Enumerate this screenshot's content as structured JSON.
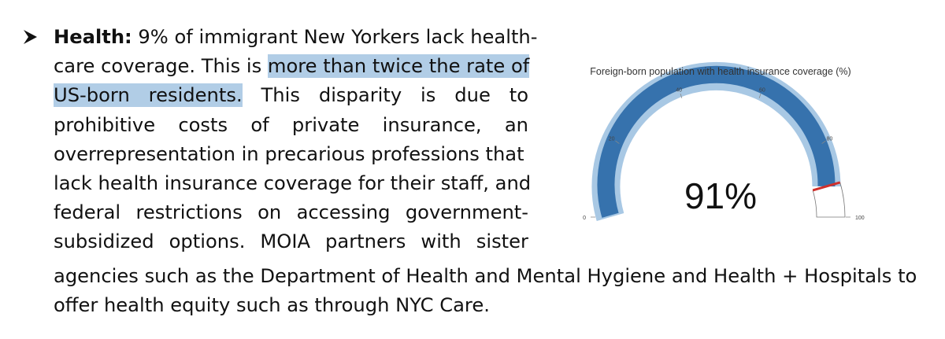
{
  "paragraph": {
    "bullet_icon": "arrow-bullet-icon",
    "heading": "Health:",
    "line1_rest": " 9% of immigrant New Yorkers lack health-",
    "line2_start": "care coverage. This is ",
    "line2_highlight": "more than twice the rate of",
    "line3_highlight": "US-born residents.",
    "line3_rest": " This disparity is due to",
    "line4": "prohibitive costs of private insurance, an",
    "line5": "overrepresentation in precarious professions that",
    "line6": "lack health insurance coverage for their staff, and",
    "line7": "federal restrictions on accessing government-",
    "line8": "subsidized options. MOIA partners with sister",
    "line9": "agencies such as the Department of Health and Mental Hygiene and Health + Hospitals to",
    "line10": "offer health equity such as through NYC Care."
  },
  "gauge": {
    "title": "Foreign-born population with health insurance coverage (%)",
    "value": 91,
    "value_label": "91%",
    "min": 0,
    "max": 100,
    "ticks": [
      "0",
      "20",
      "40",
      "60",
      "80",
      "100"
    ],
    "colors": {
      "outer_band": "#a8c8e4",
      "value_band": "#3672ad",
      "needle": "#d0302c"
    }
  }
}
